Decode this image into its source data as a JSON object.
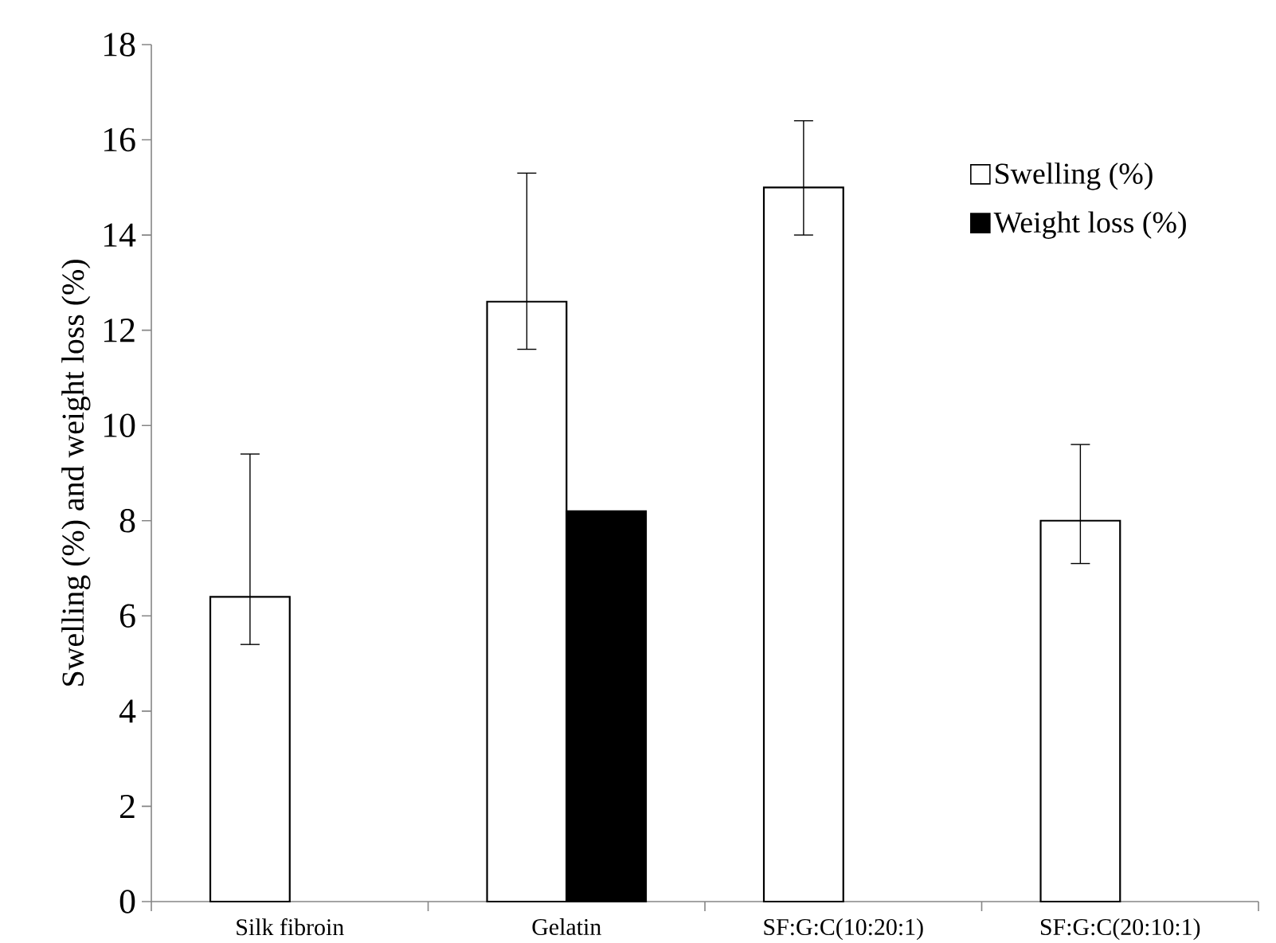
{
  "chart_data": {
    "type": "bar",
    "ylabel": "Swelling (%) and weight loss (%)",
    "categories": [
      "Silk fibroin",
      "Gelatin",
      "SF:G:C(10:20:1)",
      "SF:G:C(20:10:1)"
    ],
    "series": [
      {
        "name": "Swelling (%)",
        "color": "#ffffff",
        "values": [
          6.4,
          12.6,
          15.0,
          8.0
        ],
        "errors": [
          [
            5.4,
            9.4
          ],
          [
            11.6,
            15.3
          ],
          [
            14.0,
            16.4
          ],
          [
            7.1,
            9.6
          ]
        ]
      },
      {
        "name": "Weight loss (%)",
        "color": "#000000",
        "values": [
          null,
          8.2,
          null,
          null
        ]
      }
    ],
    "ylim": [
      0,
      18
    ],
    "yticks": [
      0,
      2,
      4,
      6,
      8,
      10,
      12,
      14,
      16,
      18
    ],
    "legend": "top right"
  }
}
